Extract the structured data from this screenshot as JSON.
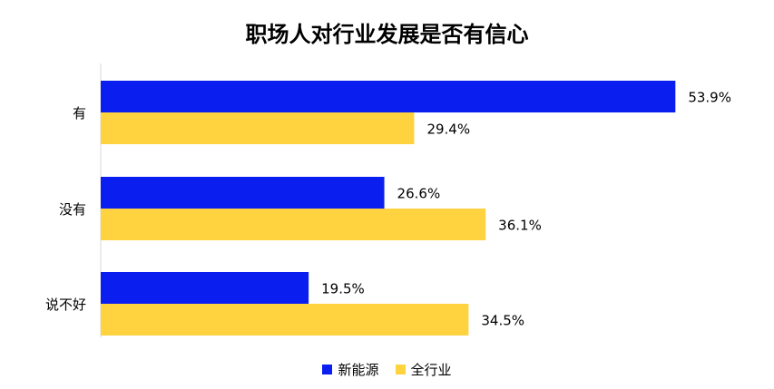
{
  "chart_data": {
    "type": "bar",
    "orientation": "horizontal",
    "title": "职场人对行业发展是否有信心",
    "categories": [
      "有",
      "没有",
      "说不好"
    ],
    "series": [
      {
        "name": "新能源",
        "values": [
          53.9,
          26.6,
          19.5
        ],
        "color": "#0a1ef0"
      },
      {
        "name": "全行业",
        "values": [
          29.4,
          36.1,
          34.5
        ],
        "color": "#ffd23f"
      }
    ],
    "value_labels": {
      "新能源": [
        "53.9%",
        "26.6%",
        "19.5%"
      ],
      "全行业": [
        "29.4%",
        "36.1%",
        "34.5%"
      ]
    },
    "xlim": [
      0,
      100
    ],
    "grid": false,
    "legend_position": "bottom"
  }
}
